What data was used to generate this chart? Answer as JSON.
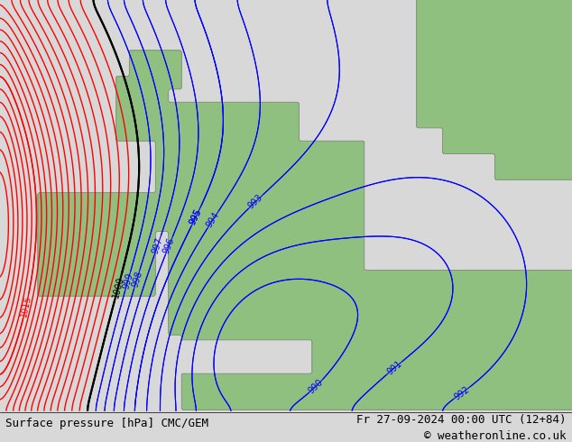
{
  "title_left": "Surface pressure [hPa] CMC/GEM",
  "title_right": "Fr 27-09-2024 00:00 UTC (12+84)",
  "copyright": "© weatheronline.co.uk",
  "bg_color": "#d8d8d8",
  "land_color": "#90c080",
  "sea_color": "#d8d8d8",
  "contour_color_low": "#0000ff",
  "contour_color_high": "#ff0000",
  "contour_color_mid": "#000000",
  "label_fontsize": 8,
  "footer_fontsize": 9,
  "pressure_min": 985,
  "pressure_max": 1020,
  "pressure_step": 1,
  "lon_min": -12,
  "lon_max": 10,
  "lat_min": 47,
  "lat_max": 63
}
